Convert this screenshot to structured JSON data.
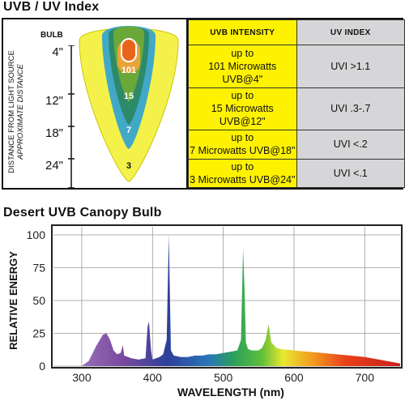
{
  "uv_section": {
    "title": "UVB / UV Index",
    "axis_label_line1": "DISTANCE FROM LIGHT SOURCE",
    "axis_label_line2": "APPROXIMATE DISTANCE",
    "bulb_label": "BULB",
    "distances": [
      "4\"",
      "12\"",
      "18\"",
      "24\""
    ],
    "cone_values": [
      "101",
      "15",
      "7",
      "3"
    ],
    "colors": {
      "outer": "#f4f24a",
      "ring2": "#41a8c8",
      "ring3": "#2c8a6a",
      "inner": "#6aa83a",
      "bulb": "#e8641a",
      "header_yellow": "#fff200",
      "header_gray": "#d6d6d8"
    }
  },
  "table": {
    "headers": [
      "UVB INTENSITY",
      "UV INDEX"
    ],
    "rows": [
      {
        "intensity_line1": "up to",
        "intensity_line2": "101 Microwatts UVB@4\"",
        "uvi": "UVI >1.1"
      },
      {
        "intensity_line1": "up to",
        "intensity_line2": "15 Microwatts UVB@12\"",
        "uvi": "UVI .3-.7"
      },
      {
        "intensity_line1": "up to",
        "intensity_line2": "7 Microwatts UVB@18\"",
        "uvi": "UVI <.2"
      },
      {
        "intensity_line1": "up to",
        "intensity_line2": "3 Microwatts UVB@24\"",
        "uvi": "UVI <.1"
      }
    ]
  },
  "chart_data": {
    "type": "area",
    "title": "Desert UVB Canopy Bulb",
    "xlabel": "WAVELENGTH (nm)",
    "ylabel": "RELATIVE ENERGY",
    "xlim": [
      260,
      750
    ],
    "ylim": [
      0,
      100
    ],
    "xticks": [
      300,
      400,
      500,
      600,
      700
    ],
    "yticks": [
      0,
      25,
      50,
      75,
      100
    ],
    "grid": true,
    "series": [
      {
        "x": [
          300,
          310,
          320,
          330,
          335,
          340,
          345,
          350,
          355,
          358,
          360,
          370,
          380,
          390,
          393,
          395,
          398,
          400,
          405,
          410,
          415,
          420,
          423,
          426,
          430,
          440,
          450,
          460,
          470,
          480,
          490,
          500,
          510,
          520,
          525,
          528,
          530,
          532,
          535,
          540,
          545,
          550,
          555,
          560,
          564,
          568,
          575,
          580,
          600,
          620,
          640,
          660,
          680,
          700,
          720,
          740,
          750
        ],
        "y": [
          0,
          4,
          15,
          24,
          25,
          20,
          12,
          9,
          10,
          16,
          8,
          6,
          5,
          6,
          30,
          34,
          12,
          5,
          6,
          7,
          9,
          20,
          100,
          12,
          8,
          7,
          7,
          8,
          8,
          9,
          9,
          10,
          11,
          12,
          20,
          90,
          60,
          18,
          13,
          12,
          12,
          12,
          14,
          20,
          32,
          18,
          14,
          13,
          12,
          11,
          10,
          9,
          8,
          7,
          5,
          3,
          2
        ]
      }
    ]
  }
}
